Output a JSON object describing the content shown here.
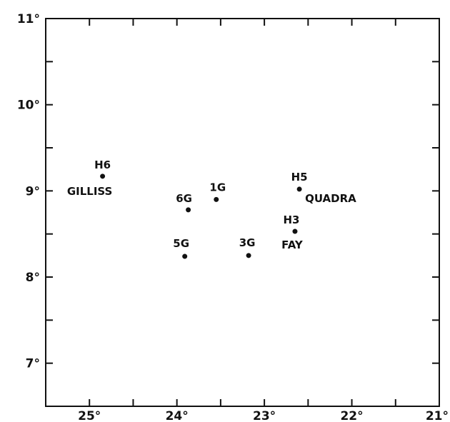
{
  "chart_data": {
    "type": "scatter",
    "title": "",
    "xlabel": "",
    "ylabel": "",
    "xlim": [
      25.5,
      21
    ],
    "ylim": [
      6.5,
      11
    ],
    "grid": false,
    "x_ticks_major": [
      25,
      24,
      23,
      22,
      21
    ],
    "x_ticks_minor": [
      24.5,
      23.5,
      22.5,
      21.5
    ],
    "y_ticks_major": [
      7,
      8,
      9,
      10,
      11
    ],
    "y_ticks_minor": [
      7.5,
      8.5,
      9.5,
      10.5
    ],
    "x_tick_labels": [
      "25°",
      "24°",
      "23°",
      "22°",
      "21°"
    ],
    "y_tick_labels": [
      "7°",
      "8°",
      "9°",
      "10°",
      "11°"
    ],
    "points": [
      {
        "label": "H6",
        "sublabel": "GILLISS",
        "x": 24.85,
        "y": 9.17
      },
      {
        "label": "1G",
        "x": 23.55,
        "y": 8.9
      },
      {
        "label": "6G",
        "x": 23.87,
        "y": 8.78
      },
      {
        "label": "H5",
        "sublabel": "QUADRA",
        "x": 22.6,
        "y": 9.02
      },
      {
        "label": "H3",
        "sublabel": "FAY",
        "x": 22.65,
        "y": 8.53
      },
      {
        "label": "5G",
        "x": 23.91,
        "y": 8.24
      },
      {
        "label": "3G",
        "x": 23.18,
        "y": 8.25
      }
    ]
  }
}
